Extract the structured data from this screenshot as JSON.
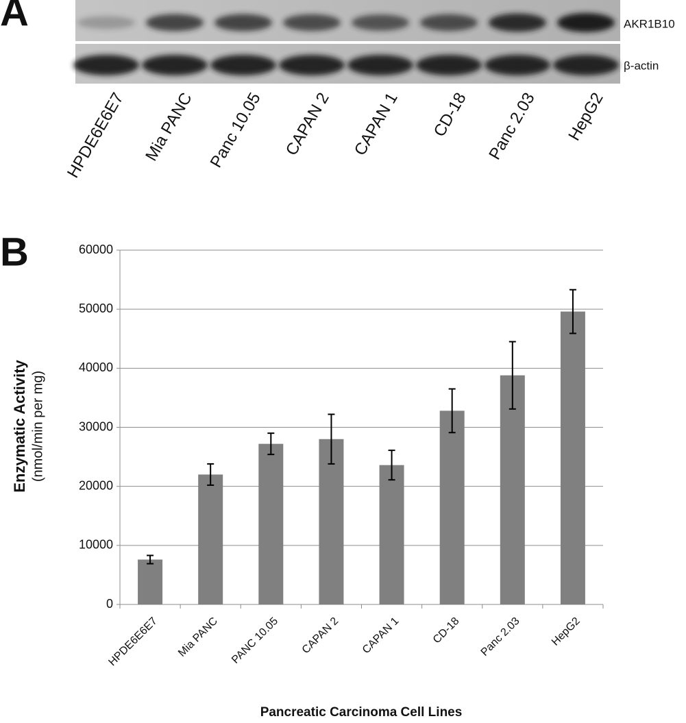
{
  "panel_a": {
    "panel_label": "A",
    "bands": [
      "AKR1B10",
      "β-actin"
    ],
    "lanes": [
      "HPDE6E6E7",
      "Mia PANC",
      "Panc 10.05",
      "CAPAN 2",
      "CAPAN 1",
      "CD-18",
      "Panc 2.03",
      "HepG2"
    ]
  },
  "chart_data": {
    "type": "bar",
    "panel_label": "B",
    "y_label": "Enzymatic Activity",
    "y_sublabel": "(nmol/min per mg)",
    "x_label": "Pancreatic Carcinoma Cell Lines",
    "categories": [
      "HPDE6E6E7",
      "Mia PANC",
      "PANC 10.05",
      "CAPAN 2",
      "CAPAN 1",
      "CD-18",
      "Panc 2.03",
      "HepG2"
    ],
    "values": [
      7600,
      22000,
      27200,
      28000,
      23600,
      32800,
      38800,
      49600
    ],
    "errors": [
      700,
      1800,
      1800,
      4200,
      2500,
      3700,
      5700,
      3700
    ],
    "color": "#808080",
    "ylim": [
      0,
      60000
    ],
    "yticks": [
      0,
      10000,
      20000,
      30000,
      40000,
      50000,
      60000
    ],
    "grid": true
  }
}
